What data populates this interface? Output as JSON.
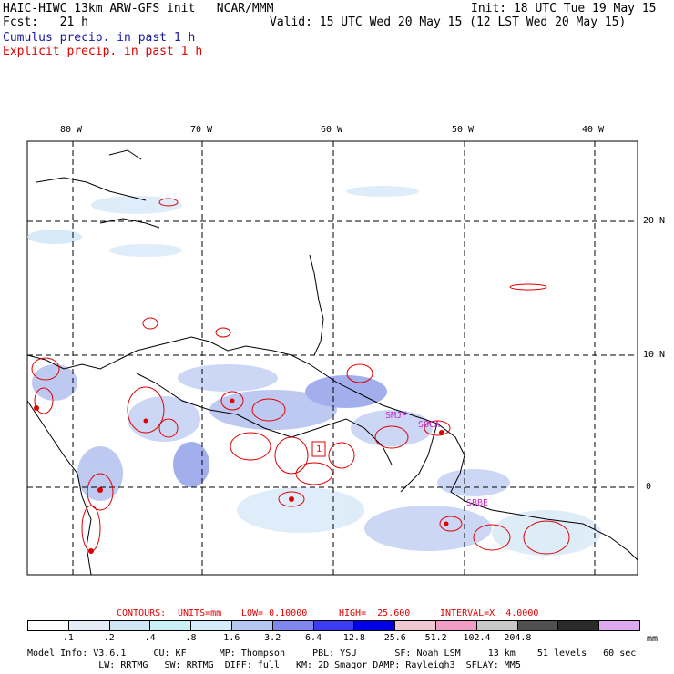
{
  "header": {
    "model_title": "HAIC-HIWC 13km ARW-GFS init   NCAR/MMM",
    "init": "Init: 18 UTC Tue 19 May 15",
    "forecast": "Fcst:   21 h",
    "valid": "Valid: 15 UTC Wed 20 May 15 (12 LST Wed 20 May 15)",
    "cumulus_label": "Cumulus precip. in past 1 h",
    "explicit_label": "Explicit precip. in past 1 h"
  },
  "map": {
    "lon_labels": [
      "80 W",
      "70 W",
      "60 W",
      "50 W",
      "40 W"
    ],
    "lat_labels": [
      "20 N",
      "10 N",
      "0"
    ],
    "station_labels": [
      "SMJP",
      "SOCA",
      "SBBE"
    ],
    "contour_label": "1"
  },
  "contour_info": {
    "contours": "CONTOURS:",
    "units": "UNITS=mm",
    "low": "LOW= 0.10000",
    "high": "HIGH=  25.600",
    "interval": "INTERVAL=X  4.0000"
  },
  "colorbar": {
    "levels": [
      ".1",
      ".2",
      ".4",
      ".8",
      "1.6",
      "3.2",
      "6.4",
      "12.8",
      "25.6",
      "51.2",
      "102.4",
      "204.8"
    ],
    "units": "mm",
    "colors": [
      "#ffffff",
      "#e6ecf5",
      "#d0e6f5",
      "#c8f0f5",
      "#d4ecfa",
      "#b4c8f2",
      "#7f86ee",
      "#3c3cf2",
      "#0000e6",
      "#f0c8d2",
      "#f09ec8",
      "#c8c8c8",
      "#505050",
      "#2a2a2a",
      "#dca8f0"
    ]
  },
  "model_info": {
    "line1": "Model Info: V3.6.1     CU: KF      MP: Thompson     PBL: YSU       SF: Noah LSM     13 km    51 levels   60 sec",
    "line2": "             LW: RRTMG   SW: RRTMG  DIFF: full   KM: 2D Smagor DAMP: Rayleigh3  SFLAY: MM5"
  }
}
